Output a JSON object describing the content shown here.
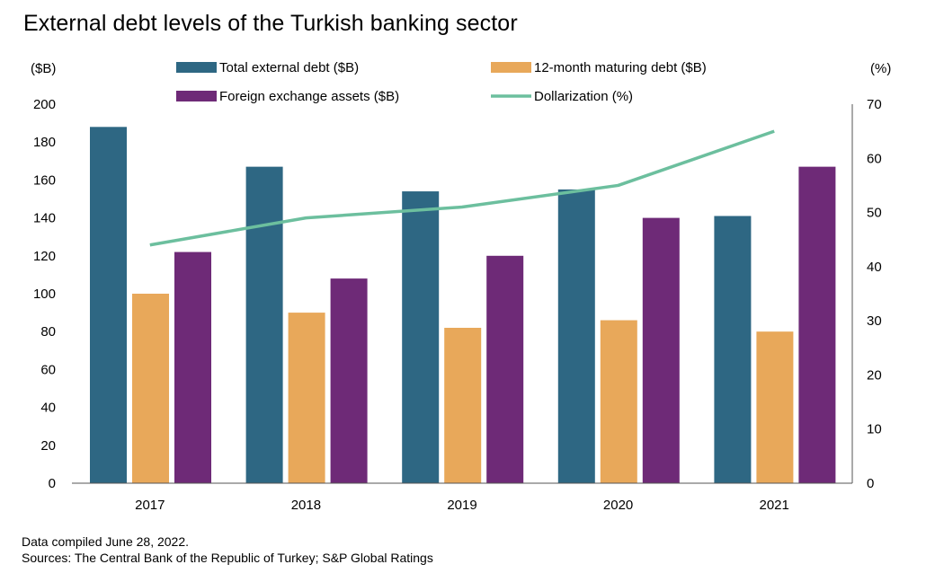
{
  "chart_data": {
    "type": "bar",
    "title": "External debt levels of the Turkish banking sector",
    "categories": [
      "2017",
      "2018",
      "2019",
      "2020",
      "2021"
    ],
    "series": [
      {
        "name": "Total external debt ($B)",
        "kind": "bar",
        "axis": "left",
        "color": "#2e6783",
        "values": [
          188,
          167,
          154,
          155,
          141
        ]
      },
      {
        "name": "12-month maturing debt ($B)",
        "kind": "bar",
        "axis": "left",
        "color": "#e8a85a",
        "values": [
          100,
          90,
          82,
          86,
          80
        ]
      },
      {
        "name": "Foreign exchange assets ($B)",
        "kind": "bar",
        "axis": "left",
        "color": "#6e2a77",
        "values": [
          122,
          108,
          120,
          140,
          167
        ]
      },
      {
        "name": "Dollarization (%)",
        "kind": "line",
        "axis": "right",
        "color": "#6cbf9e",
        "values": [
          44,
          49,
          51,
          55,
          65
        ]
      }
    ],
    "y_left": {
      "label": "($B)",
      "lim": [
        0,
        200
      ],
      "ticks": [
        0,
        20,
        40,
        60,
        80,
        100,
        120,
        140,
        160,
        180,
        200
      ]
    },
    "y_right": {
      "label": "(%)",
      "lim": [
        0,
        70
      ],
      "ticks": [
        0,
        10,
        20,
        30,
        40,
        50,
        60,
        70
      ]
    },
    "legend_position": "top",
    "grid": false
  },
  "notes": {
    "compiled": "Data compiled June 28, 2022.",
    "sources": "Sources: The Central Bank of the Republic of Turkey; S&P Global Ratings"
  }
}
